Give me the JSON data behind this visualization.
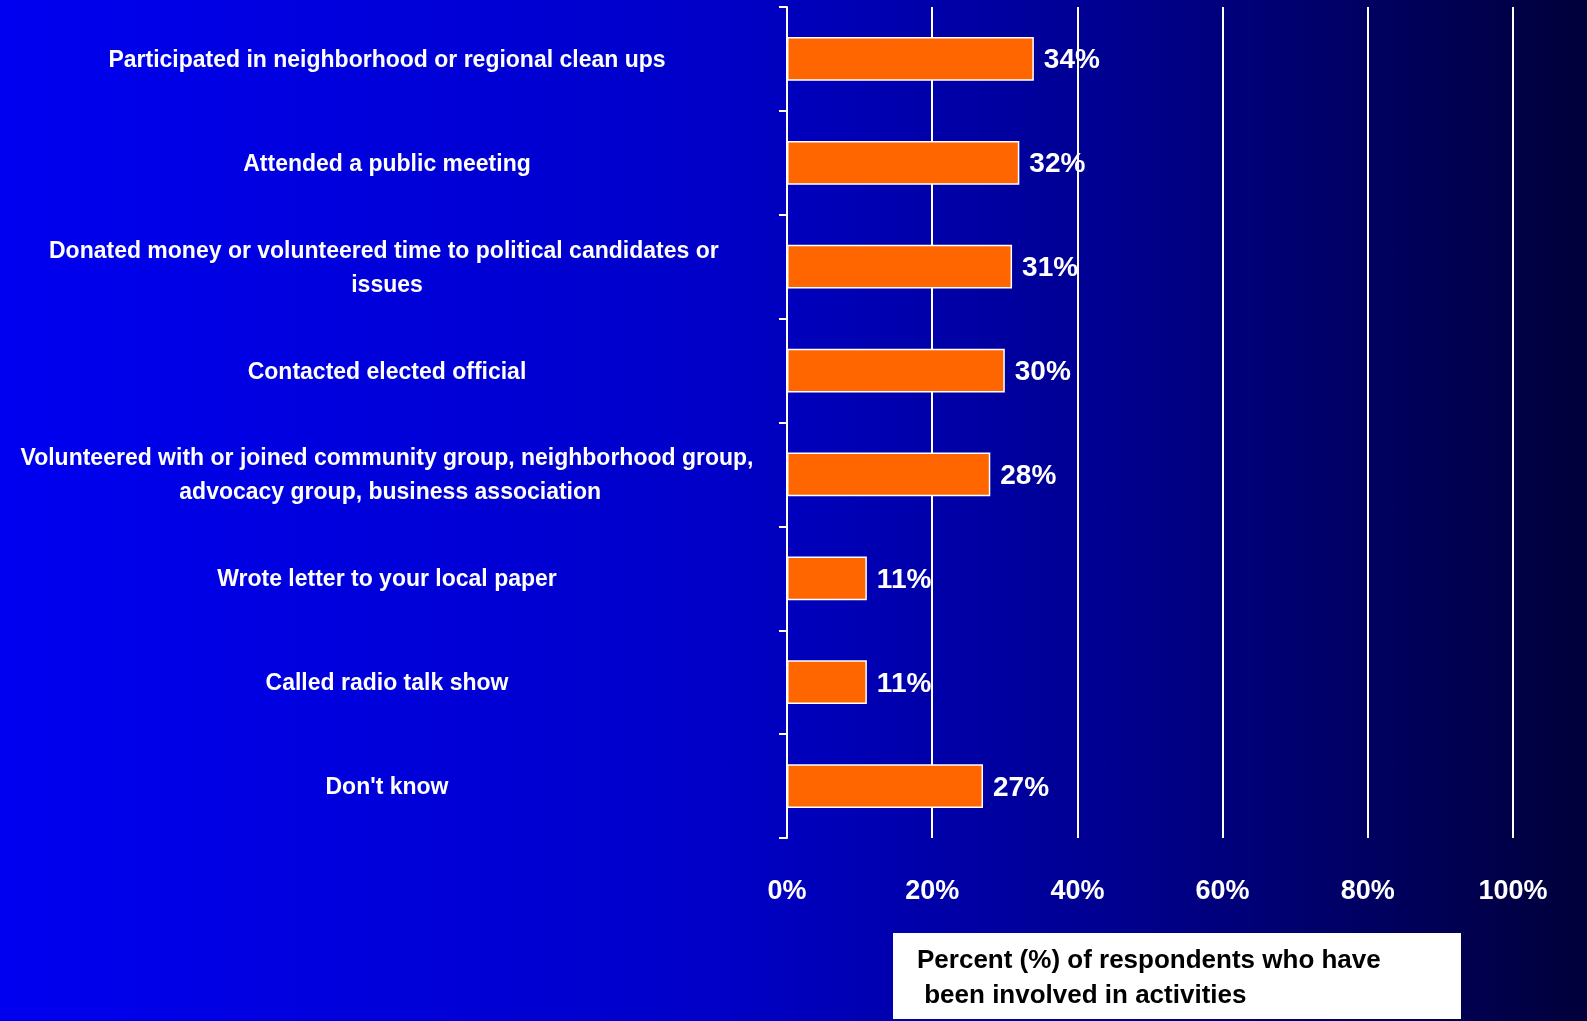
{
  "chart_data": {
    "type": "bar",
    "orientation": "horizontal",
    "categories": [
      "Participated in neighborhood or regional clean ups",
      "Attended a public meeting",
      "Donated money or volunteered time to political candidates or issues",
      "Contacted elected official",
      "Volunteered with or joined community group, neighborhood group, advocacy group, business association",
      "Wrote letter to your local paper",
      "Called radio talk show",
      "Don't know"
    ],
    "values": [
      34,
      32,
      31,
      30,
      28,
      11,
      11,
      27
    ],
    "value_labels": [
      "34%",
      "32%",
      "31%",
      "30%",
      "28%",
      "11%",
      "11%",
      "27%"
    ],
    "color": "#ff6600",
    "xlabel": "Percent (%) of respondents who have been involved in activities",
    "xlim": [
      0,
      100
    ],
    "xticks": [
      {
        "value": 0,
        "label": "0%"
      },
      {
        "value": 20,
        "label": "20%"
      },
      {
        "value": 40,
        "label": "40%"
      },
      {
        "value": 60,
        "label": "60%"
      },
      {
        "value": 80,
        "label": "80%"
      },
      {
        "value": 100,
        "label": "100%"
      }
    ],
    "grid": "x"
  }
}
